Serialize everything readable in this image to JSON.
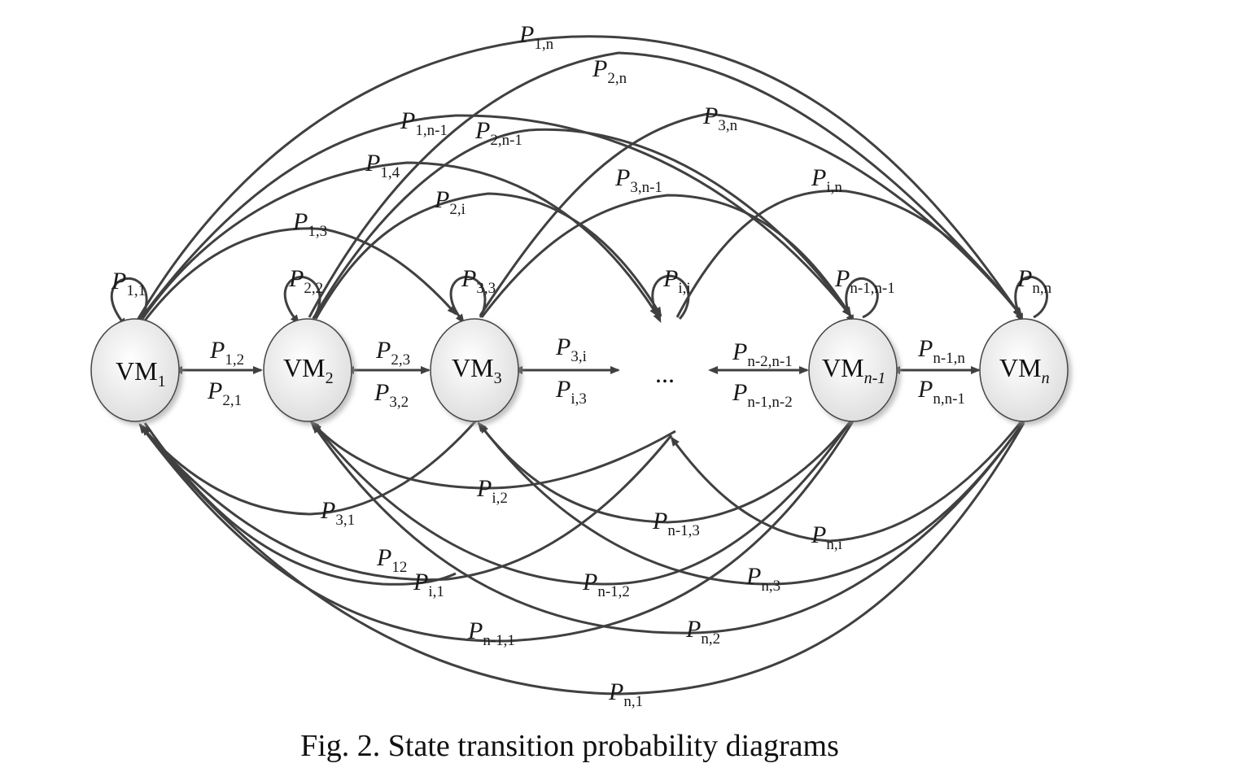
{
  "nodes": [
    {
      "base": "VM",
      "sub": "1"
    },
    {
      "base": "VM",
      "sub": "2"
    },
    {
      "base": "VM",
      "sub": "3"
    },
    {
      "base": "VM",
      "sub": "n-1"
    },
    {
      "base": "VM",
      "sub": "n"
    }
  ],
  "ellipsis": "...",
  "labels": {
    "p11": "1,1",
    "p22": "2,2",
    "p33": "3,3",
    "pii": "i,i",
    "pn1n1": "n-1,n-1",
    "pnn": "n,n",
    "p12": "1,2",
    "p21": "2,1",
    "p23": "2,3",
    "p32": "3,2",
    "p3i": "3,i",
    "pi3": "i,3",
    "pn2n1": "n-2,n-1",
    "pn1n2": "n-1,n-2",
    "pn1n": "n-1,n",
    "pnn1": "n,n-1",
    "p1n": "1,n",
    "p2n": "2,n",
    "p1n1": "1,n-1",
    "p2n1": "2,n-1",
    "p3n": "3,n",
    "p14": "1,4",
    "p3n1": "3,n-1",
    "pin": "i,n",
    "p2i": "2,i",
    "p13": "1,3",
    "p31": "3,1",
    "pi2": "i,2",
    "pn13": "n-1,3",
    "pni": "n,i",
    "p12b": "12",
    "pi1": "i,1",
    "pn12": "n-1,2",
    "pn3": "n,3",
    "pn11": "n-1,1",
    "pn2": "n,2",
    "pn1": "n,1"
  },
  "letter": "P",
  "caption": "Fig. 2. State transition probability diagrams"
}
